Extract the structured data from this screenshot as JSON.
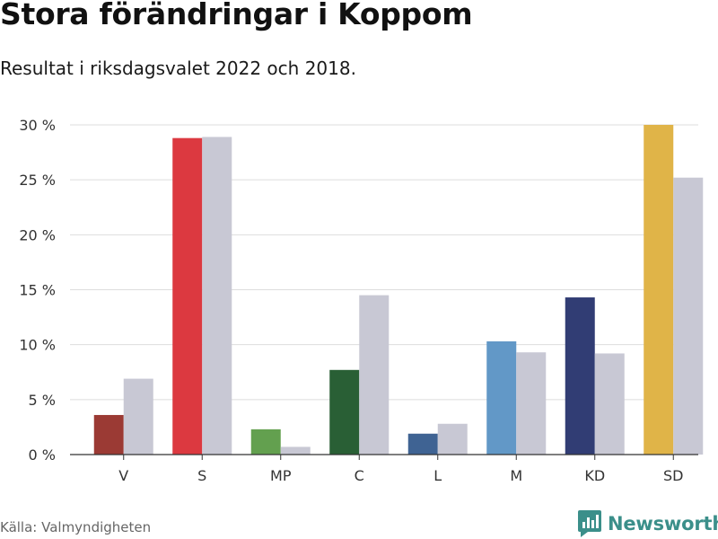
{
  "header": {
    "title": "Stora förändringar i Koppom",
    "subtitle": "Resultat i riksdagsvalet 2022 och 2018."
  },
  "footer": {
    "source": "Källa: Valmyndigheten",
    "brand": "Newsworthy"
  },
  "chart_data": {
    "type": "bar",
    "title": "Stora förändringar i Koppom",
    "subtitle": "Resultat i riksdagsvalet 2022 och 2018.",
    "xlabel": "",
    "ylabel": "",
    "ylim": [
      0,
      30
    ],
    "yticks": [
      0,
      5,
      10,
      15,
      20,
      25,
      30
    ],
    "ytick_labels": [
      "0 %",
      "5 %",
      "10 %",
      "15 %",
      "20 %",
      "25 %",
      "30 %"
    ],
    "grid": true,
    "legend": "none",
    "categories": [
      "V",
      "S",
      "MP",
      "C",
      "L",
      "M",
      "KD",
      "SD"
    ],
    "series": [
      {
        "name": "2022",
        "values": [
          3.6,
          28.8,
          2.3,
          7.7,
          1.9,
          10.3,
          14.3,
          30.0
        ],
        "colors": [
          "#9b3a34",
          "#dc3940",
          "#63a04f",
          "#295f35",
          "#3f6393",
          "#6298c7",
          "#313d74",
          "#e0b448"
        ]
      },
      {
        "name": "2018",
        "values": [
          6.9,
          28.9,
          0.7,
          14.5,
          2.8,
          9.3,
          9.2,
          25.2
        ],
        "color": "#c8c8d4"
      }
    ]
  }
}
